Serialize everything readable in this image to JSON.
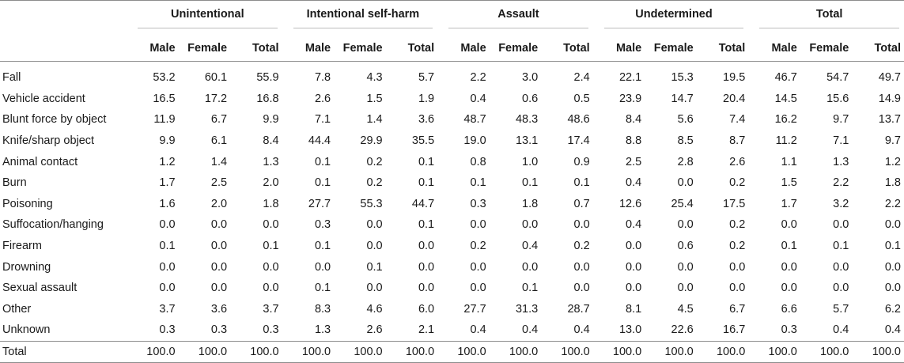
{
  "groups": [
    "Unintentional",
    "Intentional self-harm",
    "Assault",
    "Undetermined",
    "Total"
  ],
  "subheaders": [
    "Male",
    "Female",
    "Total"
  ],
  "rows": [
    {
      "label": "Fall",
      "values": [
        "53.2",
        "60.1",
        "55.9",
        "7.8",
        "4.3",
        "5.7",
        "2.2",
        "3.0",
        "2.4",
        "22.1",
        "15.3",
        "19.5",
        "46.7",
        "54.7",
        "49.7"
      ]
    },
    {
      "label": "Vehicle accident",
      "values": [
        "16.5",
        "17.2",
        "16.8",
        "2.6",
        "1.5",
        "1.9",
        "0.4",
        "0.6",
        "0.5",
        "23.9",
        "14.7",
        "20.4",
        "14.5",
        "15.6",
        "14.9"
      ]
    },
    {
      "label": "Blunt force by object",
      "values": [
        "11.9",
        "6.7",
        "9.9",
        "7.1",
        "1.4",
        "3.6",
        "48.7",
        "48.3",
        "48.6",
        "8.4",
        "5.6",
        "7.4",
        "16.2",
        "9.7",
        "13.7"
      ]
    },
    {
      "label": "Knife/sharp object",
      "values": [
        "9.9",
        "6.1",
        "8.4",
        "44.4",
        "29.9",
        "35.5",
        "19.0",
        "13.1",
        "17.4",
        "8.8",
        "8.5",
        "8.7",
        "11.2",
        "7.1",
        "9.7"
      ]
    },
    {
      "label": "Animal contact",
      "values": [
        "1.2",
        "1.4",
        "1.3",
        "0.1",
        "0.2",
        "0.1",
        "0.8",
        "1.0",
        "0.9",
        "2.5",
        "2.8",
        "2.6",
        "1.1",
        "1.3",
        "1.2"
      ]
    },
    {
      "label": "Burn",
      "values": [
        "1.7",
        "2.5",
        "2.0",
        "0.1",
        "0.2",
        "0.1",
        "0.1",
        "0.1",
        "0.1",
        "0.4",
        "0.0",
        "0.2",
        "1.5",
        "2.2",
        "1.8"
      ]
    },
    {
      "label": "Poisoning",
      "values": [
        "1.6",
        "2.0",
        "1.8",
        "27.7",
        "55.3",
        "44.7",
        "0.3",
        "1.8",
        "0.7",
        "12.6",
        "25.4",
        "17.5",
        "1.7",
        "3.2",
        "2.2"
      ]
    },
    {
      "label": "Suffocation/hanging",
      "values": [
        "0.0",
        "0.0",
        "0.0",
        "0.3",
        "0.0",
        "0.1",
        "0.0",
        "0.0",
        "0.0",
        "0.4",
        "0.0",
        "0.2",
        "0.0",
        "0.0",
        "0.0"
      ]
    },
    {
      "label": "Firearm",
      "values": [
        "0.1",
        "0.0",
        "0.1",
        "0.1",
        "0.0",
        "0.0",
        "0.2",
        "0.4",
        "0.2",
        "0.0",
        "0.6",
        "0.2",
        "0.1",
        "0.1",
        "0.1"
      ]
    },
    {
      "label": "Drowning",
      "values": [
        "0.0",
        "0.0",
        "0.0",
        "0.0",
        "0.1",
        "0.0",
        "0.0",
        "0.0",
        "0.0",
        "0.0",
        "0.0",
        "0.0",
        "0.0",
        "0.0",
        "0.0"
      ]
    },
    {
      "label": "Sexual assault",
      "values": [
        "0.0",
        "0.0",
        "0.0",
        "0.1",
        "0.0",
        "0.0",
        "0.0",
        "0.1",
        "0.0",
        "0.0",
        "0.0",
        "0.0",
        "0.0",
        "0.0",
        "0.0"
      ]
    },
    {
      "label": "Other",
      "values": [
        "3.7",
        "3.6",
        "3.7",
        "8.3",
        "4.6",
        "6.0",
        "27.7",
        "31.3",
        "28.7",
        "8.1",
        "4.5",
        "6.7",
        "6.6",
        "5.7",
        "6.2"
      ]
    },
    {
      "label": "Unknown",
      "values": [
        "0.3",
        "0.3",
        "0.3",
        "1.3",
        "2.6",
        "2.1",
        "0.4",
        "0.4",
        "0.4",
        "13.0",
        "22.6",
        "16.7",
        "0.3",
        "0.4",
        "0.4"
      ]
    },
    {
      "label": "Total",
      "values": [
        "100.0",
        "100.0",
        "100.0",
        "100.0",
        "100.0",
        "100.0",
        "100.0",
        "100.0",
        "100.0",
        "100.0",
        "100.0",
        "100.0",
        "100.0",
        "100.0",
        "100.0"
      ]
    }
  ]
}
